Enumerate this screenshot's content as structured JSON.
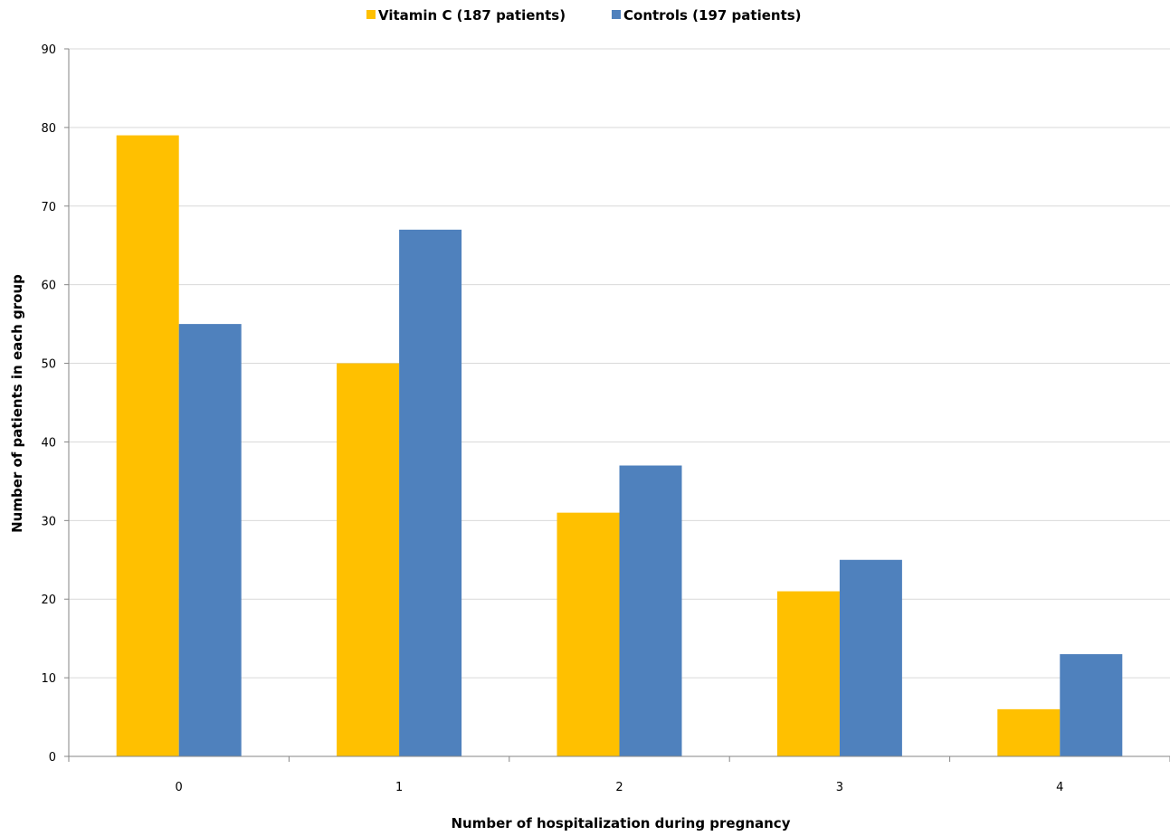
{
  "chart_data": {
    "type": "bar",
    "title": "",
    "xlabel": "Number of hospitalization during pregnancy",
    "ylabel": "Number of patients in each group",
    "categories": [
      "0",
      "1",
      "2",
      "3",
      "4"
    ],
    "series": [
      {
        "name": "Vitamin C (187 patients)",
        "color": "#FFC000",
        "values": [
          79,
          50,
          31,
          21,
          6
        ]
      },
      {
        "name": "Controls (197 patients)",
        "color": "#4F81BD",
        "values": [
          55,
          67,
          37,
          25,
          13
        ]
      }
    ],
    "ylim": [
      0,
      90
    ],
    "yticks": [
      "0",
      "10",
      "20",
      "30",
      "40",
      "50",
      "60",
      "70",
      "80",
      "90"
    ],
    "grid": true,
    "legend_position": "top-center"
  }
}
